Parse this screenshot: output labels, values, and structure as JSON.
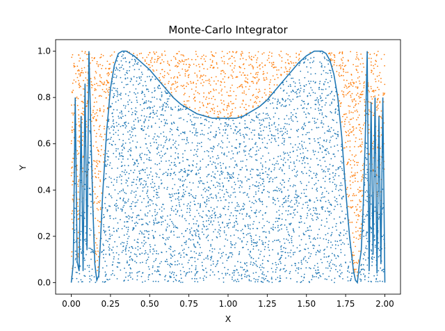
{
  "chart_data": {
    "type": "scatter",
    "title": "Monte-Carlo Integrator",
    "xlabel": "X",
    "ylabel": "Y",
    "xlim": [
      -0.1,
      2.1
    ],
    "ylim": [
      -0.05,
      1.05
    ],
    "xticks": [
      "0.00",
      "0.25",
      "0.50",
      "0.75",
      "1.00",
      "1.25",
      "1.50",
      "1.75",
      "2.00"
    ],
    "yticks": [
      "0.0",
      "0.2",
      "0.4",
      "0.6",
      "0.8",
      "1.0"
    ],
    "grid": false,
    "legend": "none",
    "point_sample_domain": {
      "x": [
        0.0,
        2.0
      ],
      "y": [
        0.0,
        1.0
      ]
    },
    "series": [
      {
        "kind": "line",
        "color": "#1f77b4",
        "x": [
          0.0,
          0.0125,
          0.025,
          0.0375,
          0.05,
          0.0625,
          0.075,
          0.0875,
          0.1,
          0.1125,
          0.125,
          0.1375,
          0.15,
          0.1625,
          0.175,
          0.1875,
          0.2,
          0.225,
          0.25,
          0.275,
          0.3,
          0.325,
          0.35,
          0.375,
          0.4,
          0.45,
          0.5,
          0.55,
          0.6,
          0.65,
          0.7,
          0.75,
          0.8,
          0.85,
          0.9,
          0.95,
          1.0,
          1.05,
          1.1,
          1.15,
          1.2,
          1.25,
          1.3,
          1.35,
          1.4,
          1.45,
          1.5,
          1.55,
          1.6,
          1.625,
          1.65,
          1.675,
          1.7,
          1.725,
          1.75,
          1.775,
          1.8,
          1.8125,
          1.825,
          1.8375,
          1.85,
          1.8625,
          1.875,
          1.8875,
          1.9,
          1.9125,
          1.925,
          1.9375,
          1.95,
          1.9625,
          1.975,
          1.9875,
          2.0
        ],
        "y": [
          0.0,
          0.08,
          0.8,
          0.09,
          0.05,
          0.72,
          0.05,
          0.86,
          0.14,
          1.0,
          0.65,
          0.33,
          0.08,
          0.01,
          0.03,
          0.2,
          0.38,
          0.65,
          0.84,
          0.94,
          0.99,
          1.0,
          1.0,
          0.99,
          0.98,
          0.95,
          0.92,
          0.88,
          0.84,
          0.8,
          0.77,
          0.75,
          0.73,
          0.72,
          0.71,
          0.71,
          0.71,
          0.71,
          0.72,
          0.74,
          0.76,
          0.79,
          0.83,
          0.87,
          0.91,
          0.95,
          0.98,
          1.0,
          1.0,
          0.99,
          0.96,
          0.9,
          0.8,
          0.63,
          0.4,
          0.2,
          0.05,
          0.01,
          0.0,
          0.08,
          0.14,
          0.34,
          0.62,
          1.0,
          0.05,
          0.78,
          0.12,
          0.8,
          0.04,
          0.72,
          0.08,
          0.8,
          0.0
        ]
      },
      {
        "kind": "points",
        "name": "",
        "color": "#1f77b4",
        "rule": "below curve"
      },
      {
        "kind": "points",
        "name": "",
        "color": "#ff7f0e",
        "rule": "above curve"
      }
    ]
  }
}
